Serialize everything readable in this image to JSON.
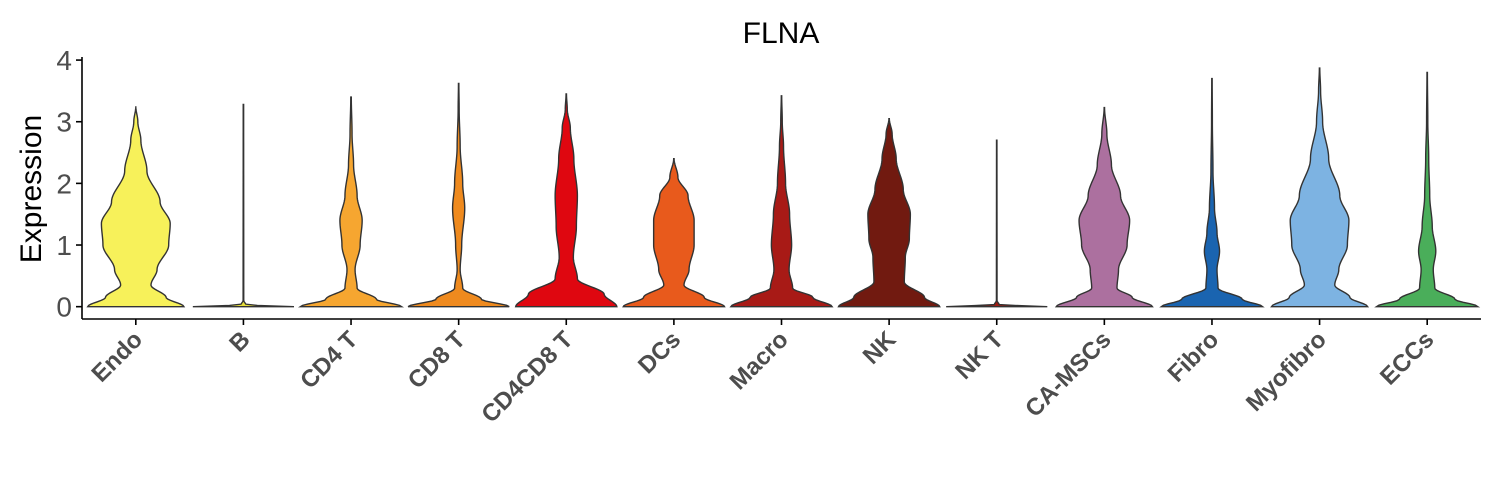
{
  "chart_data": {
    "type": "violin",
    "title": "FLNA",
    "xlabel": "",
    "ylabel": "Expression",
    "ylim": [
      -0.2,
      4.05
    ],
    "yticks": [
      0,
      1,
      2,
      3,
      4
    ],
    "grid": false,
    "legend": "none",
    "categories": [
      "Endo",
      "B",
      "CD4 T",
      "CD8 T",
      "CD4CD8 T",
      "DCs",
      "Macro",
      "NK",
      "NK T",
      "CA-MSCs",
      "Fibro",
      "Myofibro",
      "ECCs"
    ],
    "series": [
      {
        "category": "Endo",
        "color": "#F7F15A",
        "max": 3.25,
        "profile": [
          [
            0,
            0.95
          ],
          [
            0.15,
            0.6
          ],
          [
            0.35,
            0.3
          ],
          [
            0.6,
            0.42
          ],
          [
            1.0,
            0.65
          ],
          [
            1.35,
            0.68
          ],
          [
            1.7,
            0.48
          ],
          [
            2.2,
            0.22
          ],
          [
            2.7,
            0.1
          ],
          [
            3.0,
            0.04
          ],
          [
            3.25,
            0.0
          ]
        ]
      },
      {
        "category": "B",
        "color": "#E6DE3A",
        "max": 3.28,
        "profile": [
          [
            0,
            1.0
          ],
          [
            0.03,
            0.05
          ],
          [
            0.1,
            0.006
          ],
          [
            3.28,
            0.004
          ]
        ]
      },
      {
        "category": "CD4 T",
        "color": "#F6A630",
        "max": 3.4,
        "profile": [
          [
            0,
            1.0
          ],
          [
            0.12,
            0.5
          ],
          [
            0.3,
            0.12
          ],
          [
            0.6,
            0.08
          ],
          [
            1.0,
            0.18
          ],
          [
            1.4,
            0.22
          ],
          [
            1.8,
            0.12
          ],
          [
            2.3,
            0.05
          ],
          [
            2.8,
            0.02
          ],
          [
            3.4,
            0.005
          ]
        ]
      },
      {
        "category": "CD8 T",
        "color": "#EF8A1E",
        "max": 3.62,
        "profile": [
          [
            0,
            1.0
          ],
          [
            0.12,
            0.45
          ],
          [
            0.3,
            0.08
          ],
          [
            0.6,
            0.03
          ],
          [
            1.0,
            0.06
          ],
          [
            1.6,
            0.12
          ],
          [
            2.0,
            0.08
          ],
          [
            2.6,
            0.03
          ],
          [
            3.2,
            0.01
          ],
          [
            3.62,
            0.004
          ]
        ]
      },
      {
        "category": "CD4CD8 T",
        "color": "#DF0710",
        "max": 3.45,
        "profile": [
          [
            0,
            1.0
          ],
          [
            0.2,
            0.75
          ],
          [
            0.45,
            0.22
          ],
          [
            0.8,
            0.14
          ],
          [
            1.3,
            0.2
          ],
          [
            1.8,
            0.22
          ],
          [
            2.4,
            0.15
          ],
          [
            2.9,
            0.08
          ],
          [
            3.2,
            0.02
          ],
          [
            3.45,
            0.004
          ]
        ]
      },
      {
        "category": "DCs",
        "color": "#E85A1C",
        "max": 2.4,
        "profile": [
          [
            0,
            1.0
          ],
          [
            0.15,
            0.6
          ],
          [
            0.35,
            0.2
          ],
          [
            0.6,
            0.3
          ],
          [
            1.0,
            0.4
          ],
          [
            1.4,
            0.4
          ],
          [
            1.8,
            0.28
          ],
          [
            2.1,
            0.08
          ],
          [
            2.4,
            0.004
          ]
        ]
      },
      {
        "category": "Macro",
        "color": "#A81A16",
        "max": 3.42,
        "profile": [
          [
            0,
            1.0
          ],
          [
            0.15,
            0.62
          ],
          [
            0.3,
            0.22
          ],
          [
            0.6,
            0.15
          ],
          [
            1.0,
            0.2
          ],
          [
            1.5,
            0.16
          ],
          [
            2.0,
            0.08
          ],
          [
            2.6,
            0.04
          ],
          [
            3.0,
            0.015
          ],
          [
            3.42,
            0.004
          ]
        ]
      },
      {
        "category": "NK",
        "color": "#711A10",
        "max": 3.05,
        "profile": [
          [
            0,
            1.0
          ],
          [
            0.15,
            0.7
          ],
          [
            0.4,
            0.3
          ],
          [
            0.8,
            0.32
          ],
          [
            1.1,
            0.4
          ],
          [
            1.5,
            0.42
          ],
          [
            1.9,
            0.28
          ],
          [
            2.4,
            0.14
          ],
          [
            2.8,
            0.06
          ],
          [
            3.05,
            0.004
          ]
        ]
      },
      {
        "category": "NK T",
        "color": "#9E1B12",
        "max": 2.7,
        "profile": [
          [
            0,
            1.0
          ],
          [
            0.03,
            0.05
          ],
          [
            0.1,
            0.006
          ],
          [
            2.7,
            0.004
          ]
        ]
      },
      {
        "category": "CA-MSCs",
        "color": "#AC709F",
        "max": 3.23,
        "profile": [
          [
            0,
            0.95
          ],
          [
            0.15,
            0.55
          ],
          [
            0.3,
            0.25
          ],
          [
            0.6,
            0.28
          ],
          [
            1.0,
            0.45
          ],
          [
            1.4,
            0.5
          ],
          [
            1.8,
            0.32
          ],
          [
            2.3,
            0.14
          ],
          [
            2.8,
            0.05
          ],
          [
            3.23,
            0.004
          ]
        ]
      },
      {
        "category": "Fibro",
        "color": "#1A64B0",
        "max": 3.7,
        "profile": [
          [
            0,
            1.0
          ],
          [
            0.12,
            0.6
          ],
          [
            0.3,
            0.12
          ],
          [
            0.6,
            0.1
          ],
          [
            0.9,
            0.15
          ],
          [
            1.2,
            0.1
          ],
          [
            1.6,
            0.05
          ],
          [
            2.2,
            0.02
          ],
          [
            3.0,
            0.008
          ],
          [
            3.7,
            0.004
          ]
        ]
      },
      {
        "category": "Myofibro",
        "color": "#7DB3E2",
        "max": 3.87,
        "profile": [
          [
            0,
            0.95
          ],
          [
            0.15,
            0.6
          ],
          [
            0.35,
            0.3
          ],
          [
            0.6,
            0.38
          ],
          [
            1.0,
            0.55
          ],
          [
            1.4,
            0.58
          ],
          [
            1.8,
            0.4
          ],
          [
            2.4,
            0.18
          ],
          [
            3.0,
            0.06
          ],
          [
            3.5,
            0.02
          ],
          [
            3.87,
            0.004
          ]
        ]
      },
      {
        "category": "ECCs",
        "color": "#4AAE5A",
        "max": 3.8,
        "profile": [
          [
            0,
            1.0
          ],
          [
            0.12,
            0.55
          ],
          [
            0.3,
            0.15
          ],
          [
            0.6,
            0.12
          ],
          [
            0.9,
            0.17
          ],
          [
            1.3,
            0.1
          ],
          [
            1.8,
            0.05
          ],
          [
            2.4,
            0.03
          ],
          [
            3.0,
            0.012
          ],
          [
            3.8,
            0.004
          ]
        ]
      }
    ]
  }
}
